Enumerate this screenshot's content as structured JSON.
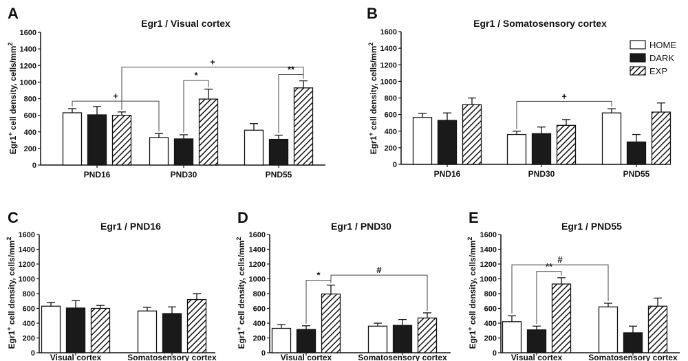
{
  "legend": [
    {
      "name": "HOME",
      "fill": "#ffffff"
    },
    {
      "name": "DARK",
      "fill": "#1a1a1a"
    },
    {
      "name": "EXP",
      "fill": "hatch"
    }
  ],
  "colors": {
    "axis": "#111111",
    "dark": "#1a1a1a",
    "open": "#ffffff"
  },
  "chart_data": [
    {
      "panel": "A",
      "type": "bar",
      "title": "Egr1 / Visual cortex",
      "ylabel": "Egr1+ cell density, cells/mm2",
      "ylim": [
        0,
        1600
      ],
      "yticks": [
        0,
        200,
        400,
        600,
        800,
        1000,
        1200,
        1400,
        1600
      ],
      "categories": [
        "PND16",
        "PND30",
        "PND55"
      ],
      "series": [
        {
          "name": "HOME",
          "values": [
            630,
            330,
            420
          ],
          "errors": [
            50,
            50,
            80
          ]
        },
        {
          "name": "DARK",
          "values": [
            605,
            315,
            310
          ],
          "errors": [
            100,
            50,
            50
          ]
        },
        {
          "name": "EXP",
          "values": [
            600,
            795,
            930
          ],
          "errors": [
            40,
            120,
            85
          ]
        }
      ],
      "annotations": [
        {
          "text": "+",
          "from": [
            0,
            0
          ],
          "to": [
            1,
            0
          ],
          "y": 770
        },
        {
          "text": "*",
          "from": [
            1,
            1
          ],
          "to": [
            1,
            2
          ],
          "y": 1020
        },
        {
          "text": "+",
          "from": [
            0,
            2
          ],
          "to": [
            2,
            2
          ],
          "y": 1180
        },
        {
          "text": "**",
          "from": [
            2,
            1
          ],
          "to": [
            2,
            2
          ],
          "y": 1090
        }
      ]
    },
    {
      "panel": "B",
      "type": "bar",
      "title": "Egr1 / Somatosensory cortex",
      "ylabel": "Egr1+ cell density, cells/mm2",
      "ylim": [
        0,
        1600
      ],
      "yticks": [
        0,
        200,
        400,
        600,
        800,
        1000,
        1200,
        1400,
        1600
      ],
      "categories": [
        "PND16",
        "PND30",
        "PND55"
      ],
      "series": [
        {
          "name": "HOME",
          "values": [
            565,
            360,
            620
          ],
          "errors": [
            50,
            40,
            50
          ]
        },
        {
          "name": "DARK",
          "values": [
            530,
            370,
            270
          ],
          "errors": [
            90,
            80,
            90
          ]
        },
        {
          "name": "EXP",
          "values": [
            720,
            470,
            630
          ],
          "errors": [
            80,
            70,
            110
          ]
        }
      ],
      "annotations": [
        {
          "text": "+",
          "from": [
            1,
            0
          ],
          "to": [
            2,
            0
          ],
          "y": 760
        }
      ]
    },
    {
      "panel": "C",
      "type": "bar",
      "title": "Egr1 / PND16",
      "ylabel": "Egr1+ cell density, cells/mm2",
      "ylim": [
        0,
        1600
      ],
      "yticks": [
        0,
        200,
        400,
        600,
        800,
        1000,
        1200,
        1400,
        1600
      ],
      "categories": [
        "Visual cortex",
        "Somatosensory cortex"
      ],
      "series": [
        {
          "name": "HOME",
          "values": [
            630,
            565
          ],
          "errors": [
            50,
            50
          ]
        },
        {
          "name": "DARK",
          "values": [
            605,
            530
          ],
          "errors": [
            100,
            90
          ]
        },
        {
          "name": "EXP",
          "values": [
            600,
            720
          ],
          "errors": [
            40,
            80
          ]
        }
      ],
      "annotations": []
    },
    {
      "panel": "D",
      "type": "bar",
      "title": "Egr1 / PND30",
      "ylabel": "Egr1+ cell density, cells/mm2",
      "ylim": [
        0,
        1600
      ],
      "yticks": [
        0,
        200,
        400,
        600,
        800,
        1000,
        1200,
        1400,
        1600
      ],
      "categories": [
        "Visual cortex",
        "Somatosensory cortex"
      ],
      "series": [
        {
          "name": "HOME",
          "values": [
            330,
            360
          ],
          "errors": [
            50,
            40
          ]
        },
        {
          "name": "DARK",
          "values": [
            315,
            370
          ],
          "errors": [
            50,
            80
          ]
        },
        {
          "name": "EXP",
          "values": [
            795,
            470
          ],
          "errors": [
            120,
            70
          ]
        }
      ],
      "annotations": [
        {
          "text": "*",
          "from": [
            0,
            1
          ],
          "to": [
            0,
            2
          ],
          "y": 980
        },
        {
          "text": "#",
          "from": [
            0,
            2
          ],
          "to": [
            1,
            2
          ],
          "y": 1050
        }
      ]
    },
    {
      "panel": "E",
      "type": "bar",
      "title": "Egr1 / PND55",
      "ylabel": "Egr1+ cell density, cells/mm2",
      "ylim": [
        0,
        1600
      ],
      "yticks": [
        0,
        200,
        400,
        600,
        800,
        1000,
        1200,
        1400,
        1600
      ],
      "categories": [
        "Visual cortex",
        "Somatosensory cortex"
      ],
      "series": [
        {
          "name": "HOME",
          "values": [
            420,
            620
          ],
          "errors": [
            80,
            50
          ]
        },
        {
          "name": "DARK",
          "values": [
            310,
            270
          ],
          "errors": [
            50,
            90
          ]
        },
        {
          "name": "EXP",
          "values": [
            930,
            630
          ],
          "errors": [
            85,
            110
          ]
        }
      ],
      "annotations": [
        {
          "text": "**",
          "from": [
            0,
            1
          ],
          "to": [
            0,
            2
          ],
          "y": 1100
        },
        {
          "text": "#",
          "from": [
            0,
            0
          ],
          "to": [
            1,
            0
          ],
          "y": 1190
        }
      ]
    }
  ]
}
